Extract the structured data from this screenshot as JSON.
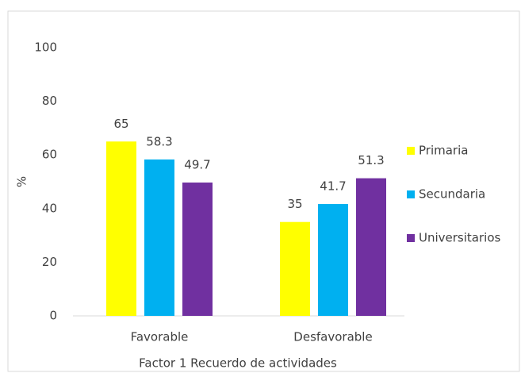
{
  "chart_data": {
    "type": "bar",
    "categories": [
      "Favorable",
      "Desfavorable"
    ],
    "series": [
      {
        "name": "Primaria",
        "color": "#ffff00",
        "values": [
          65,
          35
        ]
      },
      {
        "name": "Secundaria",
        "color": "#00b0f0",
        "values": [
          58.3,
          41.7
        ]
      },
      {
        "name": "Universitarios",
        "color": "#7030a0",
        "values": [
          49.7,
          51.3
        ]
      }
    ],
    "x_label": "Factor 1 Recuerdo de actividades",
    "y_label": "%",
    "ylim": [
      0,
      100
    ],
    "yticks": [
      0,
      20,
      40,
      60,
      80,
      100
    ],
    "grid": false,
    "legend": "right"
  }
}
